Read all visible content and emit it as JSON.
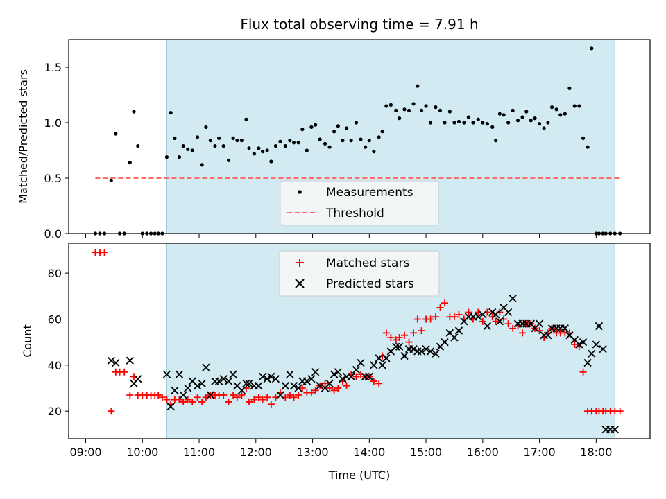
{
  "title": "Flux total observing time = 7.91 h",
  "xlabel": "Time (UTC)",
  "x_ticks": [
    "09:00",
    "10:00",
    "11:00",
    "12:00",
    "13:00",
    "14:00",
    "15:00",
    "16:00",
    "17:00",
    "18:00"
  ],
  "colors": {
    "shade": "#add8e6",
    "measurement": "#000000",
    "threshold": "#ff6b6b",
    "matched": "#ff0000",
    "predicted": "#000000"
  },
  "chart_data": [
    {
      "type": "scatter",
      "name": "ratio-panel",
      "title": "Flux total observing time = 7.91 h",
      "xlabel": "",
      "ylabel": "Matched/Predicted stars",
      "xlim": [
        8.7,
        18.95
      ],
      "ylim": [
        0,
        1.75
      ],
      "y_ticks": [
        "0.0",
        "0.5",
        "1.0",
        "1.5"
      ],
      "shaded_interval": [
        10.43,
        18.33
      ],
      "threshold": 0.5,
      "threshold_range": [
        9.17,
        18.42
      ],
      "legend": {
        "position": "lower-center",
        "entries": [
          "Measurements",
          "Threshold"
        ]
      },
      "series": [
        {
          "name": "Measurements",
          "x": [
            9.17,
            9.25,
            9.33,
            9.45,
            9.53,
            9.6,
            9.68,
            9.78,
            9.85,
            9.92,
            10.0,
            10.08,
            10.15,
            10.22,
            10.28,
            10.35,
            10.43,
            10.5,
            10.57,
            10.65,
            10.72,
            10.8,
            10.88,
            10.97,
            11.05,
            11.12,
            11.2,
            11.28,
            11.35,
            11.43,
            11.52,
            11.6,
            11.67,
            11.75,
            11.83,
            11.88,
            11.97,
            12.05,
            12.12,
            12.2,
            12.27,
            12.35,
            12.43,
            12.52,
            12.6,
            12.67,
            12.75,
            12.82,
            12.9,
            12.98,
            13.05,
            13.13,
            13.22,
            13.3,
            13.38,
            13.45,
            13.53,
            13.6,
            13.68,
            13.77,
            13.85,
            13.93,
            14.0,
            14.08,
            14.17,
            14.23,
            14.3,
            14.38,
            14.47,
            14.53,
            14.62,
            14.7,
            14.78,
            14.85,
            14.92,
            15.0,
            15.08,
            15.17,
            15.25,
            15.33,
            15.42,
            15.5,
            15.58,
            15.67,
            15.75,
            15.83,
            15.92,
            16.0,
            16.08,
            16.17,
            16.23,
            16.3,
            16.37,
            16.45,
            16.53,
            16.62,
            16.7,
            16.77,
            16.85,
            16.92,
            17.0,
            17.08,
            17.15,
            17.22,
            17.3,
            17.37,
            17.45,
            17.53,
            17.62,
            17.7,
            17.77,
            17.85,
            17.92,
            18.0,
            18.05,
            18.12,
            18.17,
            18.25,
            18.33,
            18.42
          ],
          "y": [
            0.0,
            0.0,
            0.0,
            0.48,
            0.9,
            0.0,
            0.0,
            0.64,
            1.1,
            0.79,
            0.0,
            0.0,
            0.0,
            0.0,
            0.0,
            0.0,
            0.69,
            1.09,
            0.86,
            0.69,
            0.79,
            0.76,
            0.75,
            0.87,
            0.62,
            0.96,
            0.84,
            0.79,
            0.86,
            0.79,
            0.66,
            0.86,
            0.84,
            0.84,
            1.03,
            0.77,
            0.72,
            0.77,
            0.74,
            0.75,
            0.65,
            0.79,
            0.83,
            0.79,
            0.84,
            0.82,
            0.82,
            0.94,
            0.75,
            0.96,
            0.98,
            0.85,
            0.81,
            0.78,
            0.92,
            0.97,
            0.84,
            0.95,
            0.84,
            1.0,
            0.85,
            0.78,
            0.84,
            0.74,
            0.87,
            0.92,
            1.15,
            1.16,
            1.11,
            1.04,
            1.12,
            1.11,
            1.17,
            1.33,
            1.11,
            1.15,
            1.0,
            1.14,
            1.11,
            1.0,
            1.1,
            1.0,
            1.01,
            1.0,
            1.05,
            1.0,
            1.03,
            1.0,
            0.99,
            0.96,
            0.84,
            1.08,
            1.07,
            1.0,
            1.11,
            1.02,
            1.05,
            1.1,
            1.02,
            1.04,
            0.99,
            0.95,
            1.0,
            1.14,
            1.12,
            1.07,
            1.08,
            1.31,
            1.15,
            1.15,
            0.86,
            0.78,
            1.67,
            0.0,
            0.0,
            0.0,
            0.0,
            0.0,
            0.0,
            0.0
          ]
        }
      ]
    },
    {
      "type": "scatter",
      "name": "count-panel",
      "title": "",
      "xlabel": "Time (UTC)",
      "ylabel": "Count",
      "xlim": [
        8.7,
        18.95
      ],
      "ylim": [
        8,
        93
      ],
      "y_ticks": [
        "20",
        "40",
        "60",
        "80"
      ],
      "shaded_interval": [
        10.43,
        18.33
      ],
      "legend": {
        "position": "upper-center",
        "entries": [
          "Matched stars",
          "Predicted stars"
        ]
      },
      "series": [
        {
          "name": "Matched stars",
          "marker": "plus",
          "x": [
            9.17,
            9.25,
            9.33,
            9.45,
            9.53,
            9.6,
            9.68,
            9.78,
            9.85,
            9.92,
            10.0,
            10.08,
            10.15,
            10.22,
            10.28,
            10.35,
            10.43,
            10.5,
            10.57,
            10.65,
            10.72,
            10.8,
            10.88,
            10.97,
            11.05,
            11.12,
            11.2,
            11.28,
            11.35,
            11.43,
            11.52,
            11.6,
            11.67,
            11.75,
            11.83,
            11.88,
            11.97,
            12.05,
            12.12,
            12.2,
            12.27,
            12.35,
            12.43,
            12.52,
            12.6,
            12.67,
            12.75,
            12.82,
            12.9,
            12.98,
            13.05,
            13.13,
            13.22,
            13.3,
            13.38,
            13.45,
            13.53,
            13.6,
            13.68,
            13.77,
            13.85,
            13.93,
            14.0,
            14.08,
            14.17,
            14.23,
            14.3,
            14.38,
            14.47,
            14.53,
            14.62,
            14.7,
            14.78,
            14.85,
            14.92,
            15.0,
            15.08,
            15.17,
            15.25,
            15.33,
            15.42,
            15.5,
            15.58,
            15.67,
            15.75,
            15.83,
            15.92,
            16.0,
            16.08,
            16.17,
            16.23,
            16.3,
            16.37,
            16.45,
            16.53,
            16.62,
            16.7,
            16.77,
            16.85,
            16.92,
            17.0,
            17.08,
            17.15,
            17.22,
            17.3,
            17.37,
            17.45,
            17.53,
            17.62,
            17.7,
            17.77,
            17.85,
            17.92,
            18.0,
            18.05,
            18.12,
            18.17,
            18.25,
            18.33,
            18.42
          ],
          "y": [
            89,
            89,
            89,
            20,
            37,
            37,
            37,
            27,
            35,
            27,
            27,
            27,
            27,
            27,
            27,
            26,
            25,
            23,
            25,
            25,
            24,
            25,
            24,
            26,
            24,
            26,
            27,
            27,
            27,
            27,
            24,
            27,
            26,
            27,
            30,
            24,
            25,
            26,
            25,
            26,
            23,
            26,
            28,
            26,
            27,
            26,
            27,
            30,
            28,
            28,
            29,
            31,
            32,
            30,
            29,
            30,
            33,
            31,
            36,
            35,
            36,
            35,
            35,
            33,
            32,
            44,
            54,
            52,
            51,
            52,
            53,
            50,
            54,
            60,
            55,
            60,
            60,
            61,
            65,
            67,
            61,
            61,
            62,
            60,
            63,
            60,
            63,
            59,
            63,
            61,
            59,
            63,
            60,
            58,
            56,
            57,
            54,
            58,
            58,
            56,
            55,
            52,
            54,
            56,
            54,
            54,
            54,
            54,
            49,
            48,
            37,
            20,
            20,
            20,
            20,
            20,
            20,
            20,
            20,
            20
          ],
          "visible_count": 114
        },
        {
          "name": "Predicted stars",
          "marker": "x",
          "x": [
            9.45,
            9.53,
            9.78,
            9.85,
            9.92,
            10.43,
            10.5,
            10.57,
            10.65,
            10.72,
            10.8,
            10.88,
            10.97,
            11.05,
            11.12,
            11.2,
            11.28,
            11.35,
            11.43,
            11.52,
            11.6,
            11.67,
            11.75,
            11.83,
            11.88,
            11.97,
            12.05,
            12.12,
            12.2,
            12.27,
            12.35,
            12.43,
            12.52,
            12.6,
            12.67,
            12.75,
            12.82,
            12.9,
            12.98,
            13.05,
            13.13,
            13.22,
            13.3,
            13.38,
            13.45,
            13.53,
            13.6,
            13.68,
            13.77,
            13.85,
            13.93,
            14.0,
            14.08,
            14.17,
            14.23,
            14.3,
            14.38,
            14.47,
            14.53,
            14.62,
            14.7,
            14.78,
            14.85,
            14.92,
            15.0,
            15.08,
            15.17,
            15.25,
            15.33,
            15.42,
            15.5,
            15.58,
            15.67,
            15.75,
            15.83,
            15.92,
            16.0,
            16.08,
            16.17,
            16.23,
            16.3,
            16.37,
            16.45,
            16.53,
            16.62,
            16.7,
            16.77,
            16.85,
            16.92,
            17.0,
            17.08,
            17.15,
            17.22,
            17.3,
            17.37,
            17.45,
            17.53,
            17.62,
            17.7,
            17.77,
            17.85,
            17.92,
            18.0,
            18.05,
            18.12,
            18.17,
            18.25,
            18.33
          ],
          "y": [
            42,
            41,
            42,
            32,
            34,
            36,
            22,
            29,
            36,
            27,
            30,
            33,
            31,
            32,
            39,
            27,
            33,
            33,
            34,
            33,
            36,
            31,
            29,
            32,
            32,
            31,
            31,
            35,
            34,
            35,
            34,
            27,
            31,
            36,
            31,
            30,
            33,
            33,
            34,
            37,
            31,
            30,
            32,
            36,
            37,
            34,
            35,
            35,
            38,
            41,
            35,
            35,
            40,
            43,
            40,
            43,
            46,
            48,
            48,
            44,
            47,
            47,
            46,
            46,
            47,
            46,
            45,
            48,
            50,
            54,
            52,
            55,
            59,
            61,
            61,
            61,
            62,
            57,
            63,
            62,
            59,
            65,
            63,
            69,
            58,
            58,
            58,
            58,
            56,
            58,
            53,
            53,
            56,
            56,
            56,
            56,
            53,
            51,
            49,
            50,
            41,
            45,
            49,
            57,
            47,
            12,
            12,
            12
          ],
          "visible_count": 106
        }
      ]
    }
  ]
}
